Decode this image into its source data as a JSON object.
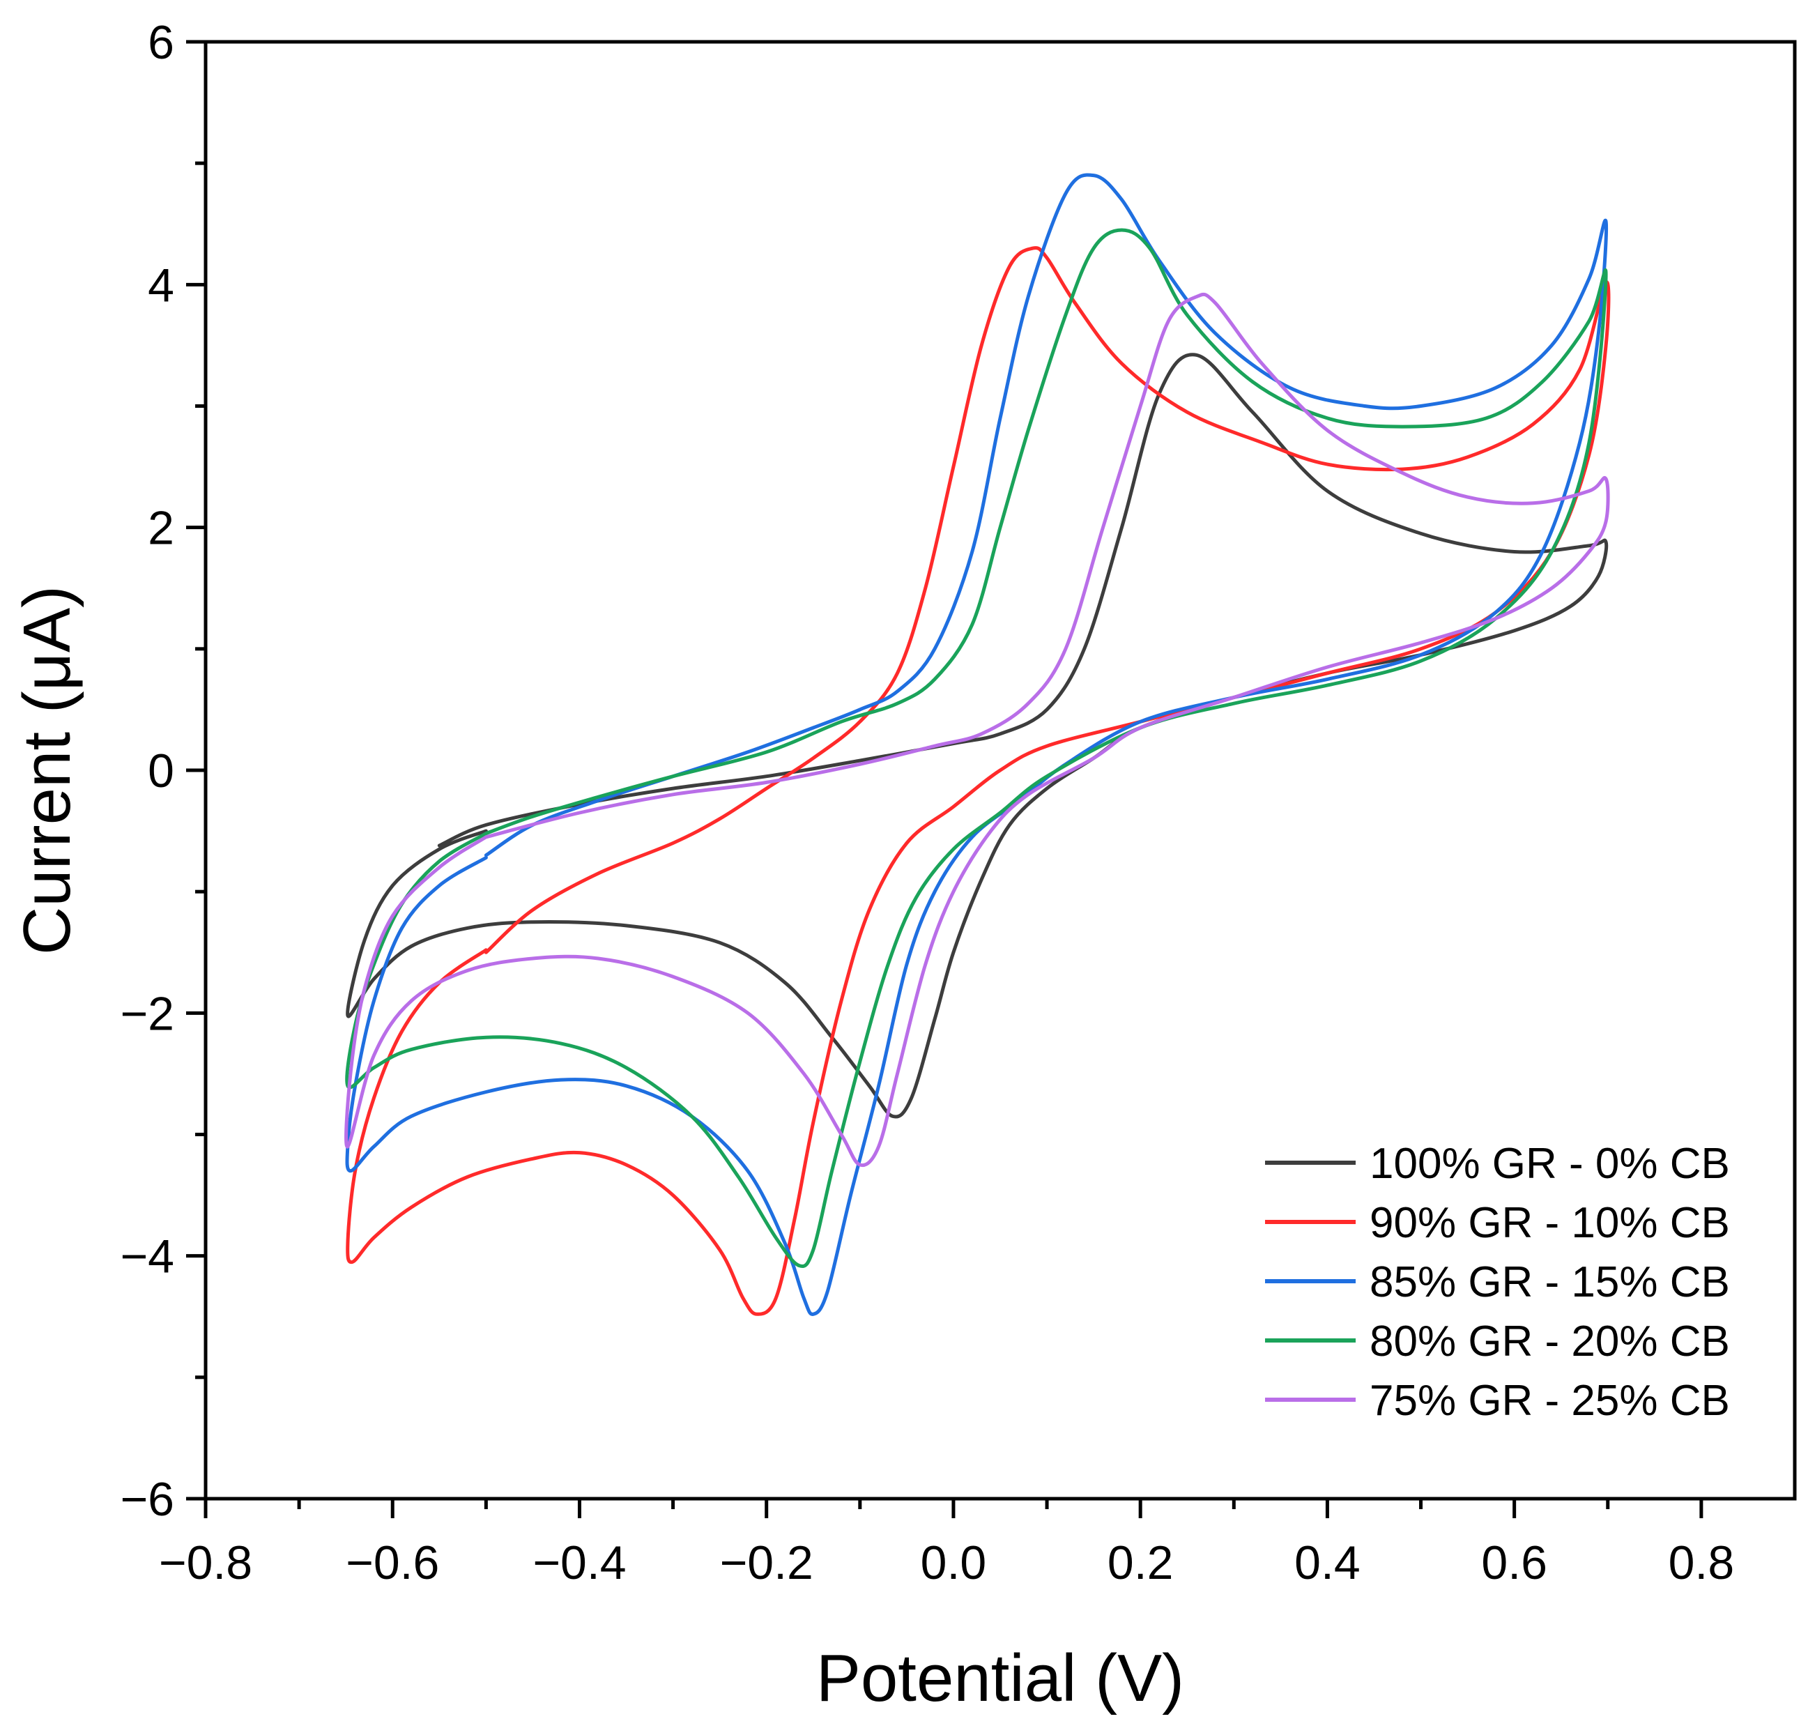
{
  "chart_data": {
    "type": "line",
    "title": "",
    "xlabel": "Potential (V)",
    "ylabel": "Current (μA)",
    "xlim": [
      -0.8,
      0.9
    ],
    "ylim": [
      -6,
      6
    ],
    "x_ticks": [
      -0.8,
      -0.6,
      -0.4,
      -0.2,
      0.0,
      0.2,
      0.4,
      0.6,
      0.8
    ],
    "x_tick_labels": [
      "−0.8",
      "−0.6",
      "−0.4",
      "−0.2",
      "0.0",
      "0.2",
      "0.4",
      "0.6",
      "0.8"
    ],
    "y_ticks": [
      -6,
      -4,
      -2,
      0,
      2,
      4,
      6
    ],
    "y_tick_labels": [
      "−6",
      "−4",
      "−2",
      "0",
      "2",
      "4",
      "6"
    ],
    "grid": false,
    "legend_position": "bottom-right",
    "series": [
      {
        "name": "100% GR - 0% CB",
        "color": "#3d3d3d",
        "points": [
          [
            -0.5,
            -0.5
          ],
          [
            -0.55,
            -0.65
          ],
          [
            -0.6,
            -0.95
          ],
          [
            -0.63,
            -1.4
          ],
          [
            -0.648,
            -2.02
          ],
          [
            -0.62,
            -1.72
          ],
          [
            -0.58,
            -1.45
          ],
          [
            -0.52,
            -1.3
          ],
          [
            -0.45,
            -1.25
          ],
          [
            -0.35,
            -1.28
          ],
          [
            -0.25,
            -1.42
          ],
          [
            -0.18,
            -1.75
          ],
          [
            -0.13,
            -2.2
          ],
          [
            -0.09,
            -2.6
          ],
          [
            -0.065,
            -2.85
          ],
          [
            -0.045,
            -2.7
          ],
          [
            -0.02,
            -2.05
          ],
          [
            0.0,
            -1.5
          ],
          [
            0.03,
            -0.9
          ],
          [
            0.06,
            -0.45
          ],
          [
            0.1,
            -0.15
          ],
          [
            0.15,
            0.1
          ],
          [
            0.2,
            0.35
          ],
          [
            0.3,
            0.6
          ],
          [
            0.4,
            0.8
          ],
          [
            0.5,
            0.95
          ],
          [
            0.6,
            1.15
          ],
          [
            0.66,
            1.35
          ],
          [
            0.69,
            1.6
          ],
          [
            0.698,
            1.88
          ],
          [
            0.68,
            1.85
          ],
          [
            0.6,
            1.8
          ],
          [
            0.5,
            1.95
          ],
          [
            0.4,
            2.3
          ],
          [
            0.32,
            2.95
          ],
          [
            0.26,
            3.42
          ],
          [
            0.22,
            3.1
          ],
          [
            0.18,
            2.0
          ],
          [
            0.14,
            1.0
          ],
          [
            0.1,
            0.5
          ],
          [
            0.05,
            0.3
          ],
          [
            0.0,
            0.22
          ],
          [
            -0.1,
            0.08
          ],
          [
            -0.2,
            -0.05
          ],
          [
            -0.3,
            -0.15
          ],
          [
            -0.4,
            -0.28
          ],
          [
            -0.5,
            -0.45
          ],
          [
            -0.55,
            -0.62
          ]
        ]
      },
      {
        "name": "90% GR - 10% CB",
        "color": "#ff2a2a",
        "points": [
          [
            -0.5,
            -1.48
          ],
          [
            -0.55,
            -1.75
          ],
          [
            -0.59,
            -2.15
          ],
          [
            -0.62,
            -2.7
          ],
          [
            -0.64,
            -3.3
          ],
          [
            -0.648,
            -3.9
          ],
          [
            -0.643,
            -4.05
          ],
          [
            -0.62,
            -3.85
          ],
          [
            -0.58,
            -3.6
          ],
          [
            -0.52,
            -3.35
          ],
          [
            -0.45,
            -3.2
          ],
          [
            -0.4,
            -3.15
          ],
          [
            -0.35,
            -3.25
          ],
          [
            -0.3,
            -3.5
          ],
          [
            -0.25,
            -3.95
          ],
          [
            -0.225,
            -4.35
          ],
          [
            -0.21,
            -4.48
          ],
          [
            -0.19,
            -4.35
          ],
          [
            -0.17,
            -3.7
          ],
          [
            -0.15,
            -2.9
          ],
          [
            -0.12,
            -1.9
          ],
          [
            -0.09,
            -1.15
          ],
          [
            -0.05,
            -0.6
          ],
          [
            0.0,
            -0.3
          ],
          [
            0.05,
            0.0
          ],
          [
            0.1,
            0.2
          ],
          [
            0.2,
            0.4
          ],
          [
            0.3,
            0.6
          ],
          [
            0.4,
            0.8
          ],
          [
            0.5,
            1.0
          ],
          [
            0.58,
            1.3
          ],
          [
            0.64,
            1.8
          ],
          [
            0.68,
            2.6
          ],
          [
            0.698,
            3.5
          ],
          [
            0.698,
            4.02
          ],
          [
            0.67,
            3.3
          ],
          [
            0.62,
            2.85
          ],
          [
            0.55,
            2.58
          ],
          [
            0.48,
            2.48
          ],
          [
            0.4,
            2.52
          ],
          [
            0.33,
            2.7
          ],
          [
            0.25,
            2.95
          ],
          [
            0.18,
            3.35
          ],
          [
            0.13,
            3.85
          ],
          [
            0.1,
            4.22
          ],
          [
            0.085,
            4.3
          ],
          [
            0.06,
            4.15
          ],
          [
            0.03,
            3.5
          ],
          [
            0.0,
            2.5
          ],
          [
            -0.03,
            1.5
          ],
          [
            -0.06,
            0.8
          ],
          [
            -0.1,
            0.4
          ],
          [
            -0.15,
            0.1
          ],
          [
            -0.2,
            -0.15
          ],
          [
            -0.25,
            -0.4
          ],
          [
            -0.3,
            -0.6
          ],
          [
            -0.38,
            -0.85
          ],
          [
            -0.45,
            -1.15
          ],
          [
            -0.5,
            -1.5
          ]
        ]
      },
      {
        "name": "85% GR - 15% CB",
        "color": "#1f6fe0",
        "points": [
          [
            -0.5,
            -0.72
          ],
          [
            -0.55,
            -0.95
          ],
          [
            -0.59,
            -1.3
          ],
          [
            -0.62,
            -1.9
          ],
          [
            -0.64,
            -2.6
          ],
          [
            -0.648,
            -3.1
          ],
          [
            -0.645,
            -3.3
          ],
          [
            -0.62,
            -3.1
          ],
          [
            -0.58,
            -2.85
          ],
          [
            -0.5,
            -2.65
          ],
          [
            -0.42,
            -2.55
          ],
          [
            -0.35,
            -2.6
          ],
          [
            -0.28,
            -2.85
          ],
          [
            -0.22,
            -3.3
          ],
          [
            -0.18,
            -3.9
          ],
          [
            -0.16,
            -4.35
          ],
          [
            -0.15,
            -4.48
          ],
          [
            -0.135,
            -4.3
          ],
          [
            -0.11,
            -3.5
          ],
          [
            -0.08,
            -2.6
          ],
          [
            -0.05,
            -1.6
          ],
          [
            -0.02,
            -1.0
          ],
          [
            0.02,
            -0.55
          ],
          [
            0.07,
            -0.25
          ],
          [
            0.12,
            0.05
          ],
          [
            0.2,
            0.4
          ],
          [
            0.3,
            0.6
          ],
          [
            0.4,
            0.75
          ],
          [
            0.5,
            0.95
          ],
          [
            0.58,
            1.3
          ],
          [
            0.63,
            1.8
          ],
          [
            0.67,
            2.7
          ],
          [
            0.69,
            3.6
          ],
          [
            0.698,
            4.52
          ],
          [
            0.68,
            4.05
          ],
          [
            0.64,
            3.5
          ],
          [
            0.58,
            3.15
          ],
          [
            0.5,
            3.0
          ],
          [
            0.44,
            3.0
          ],
          [
            0.36,
            3.15
          ],
          [
            0.28,
            3.6
          ],
          [
            0.22,
            4.2
          ],
          [
            0.18,
            4.7
          ],
          [
            0.15,
            4.9
          ],
          [
            0.12,
            4.75
          ],
          [
            0.08,
            3.9
          ],
          [
            0.05,
            2.9
          ],
          [
            0.02,
            1.8
          ],
          [
            -0.02,
            1.0
          ],
          [
            -0.06,
            0.65
          ],
          [
            -0.1,
            0.5
          ],
          [
            -0.15,
            0.35
          ],
          [
            -0.22,
            0.15
          ],
          [
            -0.3,
            -0.05
          ],
          [
            -0.38,
            -0.25
          ],
          [
            -0.45,
            -0.45
          ],
          [
            -0.5,
            -0.7
          ]
        ]
      },
      {
        "name": "80% GR - 20% CB",
        "color": "#1aa35a",
        "points": [
          [
            -0.5,
            -0.52
          ],
          [
            -0.55,
            -0.75
          ],
          [
            -0.59,
            -1.1
          ],
          [
            -0.62,
            -1.6
          ],
          [
            -0.64,
            -2.1
          ],
          [
            -0.648,
            -2.6
          ],
          [
            -0.62,
            -2.45
          ],
          [
            -0.58,
            -2.3
          ],
          [
            -0.5,
            -2.2
          ],
          [
            -0.42,
            -2.25
          ],
          [
            -0.35,
            -2.45
          ],
          [
            -0.28,
            -2.85
          ],
          [
            -0.23,
            -3.35
          ],
          [
            -0.19,
            -3.85
          ],
          [
            -0.165,
            -4.08
          ],
          [
            -0.15,
            -3.95
          ],
          [
            -0.13,
            -3.3
          ],
          [
            -0.1,
            -2.4
          ],
          [
            -0.07,
            -1.6
          ],
          [
            -0.04,
            -1.05
          ],
          [
            0.0,
            -0.65
          ],
          [
            0.05,
            -0.35
          ],
          [
            0.1,
            -0.05
          ],
          [
            0.2,
            0.35
          ],
          [
            0.3,
            0.55
          ],
          [
            0.4,
            0.7
          ],
          [
            0.5,
            0.9
          ],
          [
            0.58,
            1.25
          ],
          [
            0.64,
            1.8
          ],
          [
            0.68,
            2.7
          ],
          [
            0.698,
            4.08
          ],
          [
            0.68,
            3.7
          ],
          [
            0.63,
            3.2
          ],
          [
            0.57,
            2.9
          ],
          [
            0.48,
            2.83
          ],
          [
            0.4,
            2.9
          ],
          [
            0.32,
            3.2
          ],
          [
            0.25,
            3.75
          ],
          [
            0.21,
            4.3
          ],
          [
            0.18,
            4.45
          ],
          [
            0.15,
            4.3
          ],
          [
            0.12,
            3.75
          ],
          [
            0.08,
            2.8
          ],
          [
            0.05,
            2.0
          ],
          [
            0.02,
            1.2
          ],
          [
            -0.02,
            0.75
          ],
          [
            -0.06,
            0.55
          ],
          [
            -0.12,
            0.4
          ],
          [
            -0.2,
            0.15
          ],
          [
            -0.3,
            -0.05
          ],
          [
            -0.38,
            -0.22
          ],
          [
            -0.45,
            -0.38
          ],
          [
            -0.5,
            -0.52
          ]
        ]
      },
      {
        "name": "75% GR - 25% CB",
        "color": "#b96ee8",
        "points": [
          [
            -0.5,
            -0.55
          ],
          [
            -0.55,
            -0.8
          ],
          [
            -0.6,
            -1.2
          ],
          [
            -0.63,
            -1.8
          ],
          [
            -0.645,
            -2.5
          ],
          [
            -0.648,
            -3.1
          ],
          [
            -0.62,
            -2.35
          ],
          [
            -0.58,
            -1.9
          ],
          [
            -0.52,
            -1.65
          ],
          [
            -0.45,
            -1.55
          ],
          [
            -0.38,
            -1.55
          ],
          [
            -0.3,
            -1.7
          ],
          [
            -0.22,
            -2.0
          ],
          [
            -0.16,
            -2.5
          ],
          [
            -0.12,
            -3.0
          ],
          [
            -0.1,
            -3.25
          ],
          [
            -0.08,
            -3.1
          ],
          [
            -0.06,
            -2.5
          ],
          [
            -0.03,
            -1.6
          ],
          [
            0.0,
            -1.0
          ],
          [
            0.04,
            -0.5
          ],
          [
            0.08,
            -0.2
          ],
          [
            0.15,
            0.1
          ],
          [
            0.2,
            0.35
          ],
          [
            0.3,
            0.6
          ],
          [
            0.4,
            0.85
          ],
          [
            0.5,
            1.05
          ],
          [
            0.58,
            1.25
          ],
          [
            0.64,
            1.5
          ],
          [
            0.68,
            1.8
          ],
          [
            0.698,
            2.05
          ],
          [
            0.698,
            2.4
          ],
          [
            0.68,
            2.3
          ],
          [
            0.62,
            2.2
          ],
          [
            0.55,
            2.25
          ],
          [
            0.48,
            2.45
          ],
          [
            0.4,
            2.8
          ],
          [
            0.33,
            3.35
          ],
          [
            0.28,
            3.85
          ],
          [
            0.26,
            3.9
          ],
          [
            0.23,
            3.7
          ],
          [
            0.2,
            3.0
          ],
          [
            0.16,
            2.0
          ],
          [
            0.12,
            1.0
          ],
          [
            0.08,
            0.55
          ],
          [
            0.03,
            0.3
          ],
          [
            -0.02,
            0.2
          ],
          [
            -0.1,
            0.05
          ],
          [
            -0.2,
            -0.1
          ],
          [
            -0.3,
            -0.2
          ],
          [
            -0.4,
            -0.35
          ],
          [
            -0.5,
            -0.55
          ]
        ]
      }
    ]
  }
}
